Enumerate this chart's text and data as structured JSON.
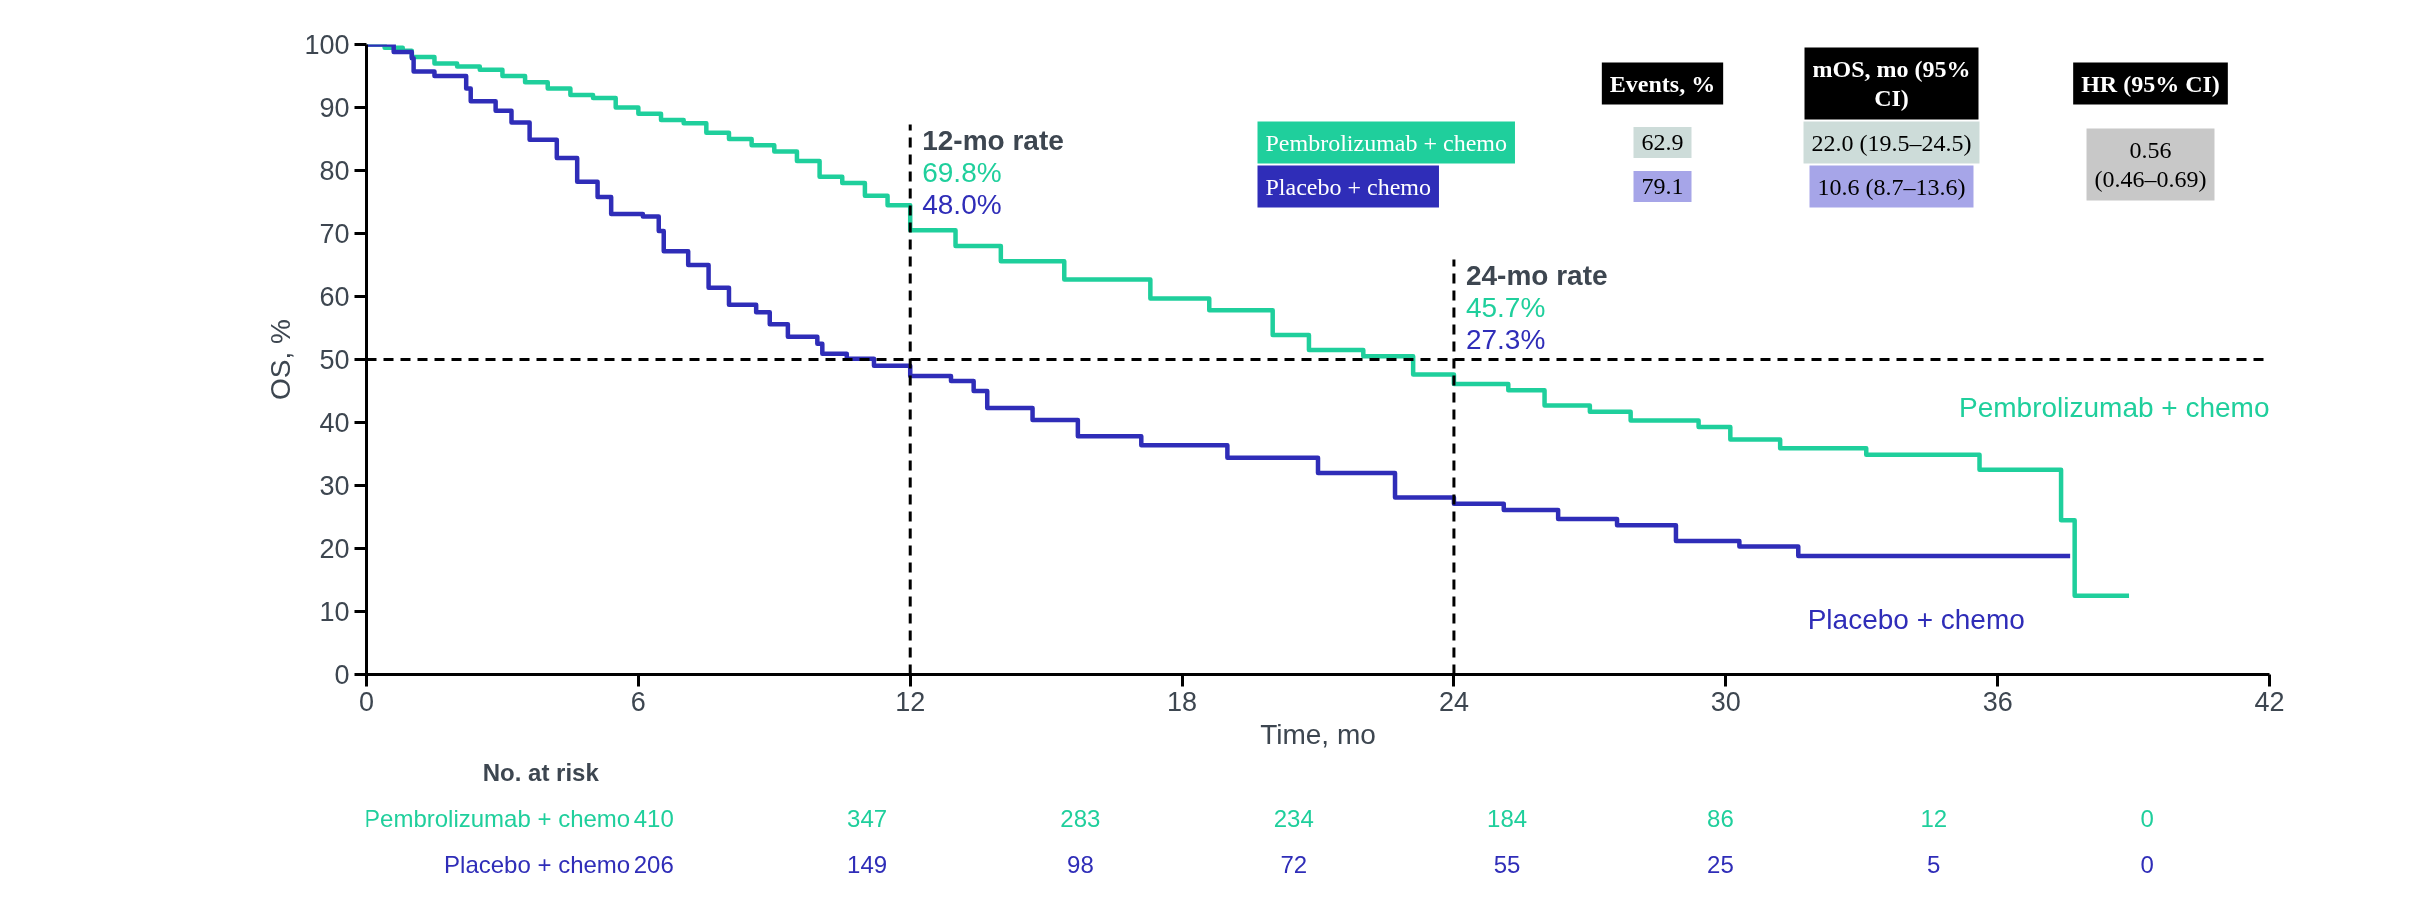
{
  "chart_data": {
    "type": "step",
    "xlabel": "Time, mo",
    "ylabel": "OS, %",
    "xlim": [
      0,
      42
    ],
    "ylim": [
      0,
      100
    ],
    "xticks": [
      0,
      6,
      12,
      18,
      24,
      30,
      36,
      42
    ],
    "yticks": [
      0,
      10,
      20,
      30,
      40,
      50,
      60,
      70,
      80,
      90,
      100
    ],
    "grid": false,
    "legend": false,
    "series": [
      {
        "name": "Pembrolizumab + chemo",
        "color": "#1fcf9c",
        "x": [
          0,
          0.4,
          0.8,
          1.0,
          1.5,
          2.0,
          2.5,
          3.0,
          3.5,
          4.0,
          4.5,
          5.0,
          5.5,
          6.0,
          6.5,
          7.0,
          7.5,
          8.0,
          8.5,
          9.0,
          9.5,
          10.0,
          10.5,
          11.0,
          11.5,
          12.0,
          13.0,
          14.0,
          15.4,
          17.3,
          18.6,
          20.0,
          20.8,
          22.0,
          23.1,
          24.0,
          25.2,
          26.0,
          27.0,
          27.9,
          29.4,
          30.1,
          31.2,
          33.1,
          35.5,
          35.6,
          37.4,
          37.7,
          38.9
        ],
        "values": [
          100,
          99.5,
          99,
          98,
          97,
          96.5,
          96,
          95,
          94,
          93,
          92,
          91.5,
          90,
          89,
          88,
          87.5,
          86,
          85,
          84,
          83,
          81.5,
          79,
          78,
          76,
          74.5,
          70.5,
          68,
          65.6,
          62.7,
          59.7,
          57.8,
          53.9,
          51.5,
          50.5,
          47.6,
          46.1,
          45.1,
          42.7,
          41.7,
          40.3,
          39.3,
          37.3,
          35.9,
          34.9,
          34.9,
          32.5,
          24.5,
          12.5,
          12.5
        ]
      },
      {
        "name": "Placebo + chemo",
        "color": "#2f2db8",
        "x": [
          0,
          0.36,
          0.6,
          1.0,
          1.04,
          1.5,
          2.2,
          2.3,
          2.85,
          3.2,
          3.6,
          4.2,
          4.65,
          5.1,
          5.4,
          6.1,
          6.45,
          6.56,
          7.1,
          7.55,
          8.0,
          8.6,
          8.9,
          9.3,
          9.95,
          10.06,
          10.6,
          11.2,
          12.0,
          12.9,
          13.4,
          13.7,
          14.7,
          15.7,
          17.1,
          19.0,
          21.0,
          22.7,
          24.0,
          25.1,
          26.3,
          27.6,
          28.9,
          30.3,
          31.6,
          37.6
        ],
        "values": [
          100,
          100,
          98.8,
          97.8,
          95.7,
          95,
          93,
          91,
          89.5,
          87.6,
          84.9,
          82,
          78.2,
          75.8,
          73.1,
          72.7,
          70.4,
          67.2,
          65,
          61.4,
          58.7,
          57.5,
          55.6,
          53.6,
          52.5,
          50.9,
          50.1,
          49,
          47.4,
          46.6,
          45,
          42.3,
          40.4,
          37.8,
          36.4,
          34.4,
          32,
          28.1,
          27.1,
          26.1,
          24.7,
          23.7,
          21.2,
          20.3,
          18.8,
          18.8
        ]
      }
    ],
    "ref_lines": [
      {
        "axis": "y",
        "value": 50,
        "line_style": "dashed",
        "color": "#000000"
      },
      {
        "axis": "x",
        "value": 12,
        "label": "12-mo rate",
        "line_style": "dashed",
        "color": "#000000"
      },
      {
        "axis": "x",
        "value": 24,
        "label": "24-mo rate",
        "line_style": "dashed",
        "color": "#000000"
      }
    ],
    "annotations": [
      "Events, %",
      "mOS, mo (95% CI)",
      "HR (95% CI)",
      "62.9",
      "22.0 (19.5–24.5)",
      "79.1",
      "10.6 (8.7–13.6)",
      "0.56 (0.46–0.69)",
      "No. at risk",
      "410",
      "347",
      "283",
      "234",
      "184",
      "86",
      "12",
      "0",
      "206",
      "149",
      "98",
      "72",
      "55",
      "25",
      "5",
      "0",
      "69.8%",
      "48.0%",
      "45.7%",
      "27.3%"
    ]
  }
}
